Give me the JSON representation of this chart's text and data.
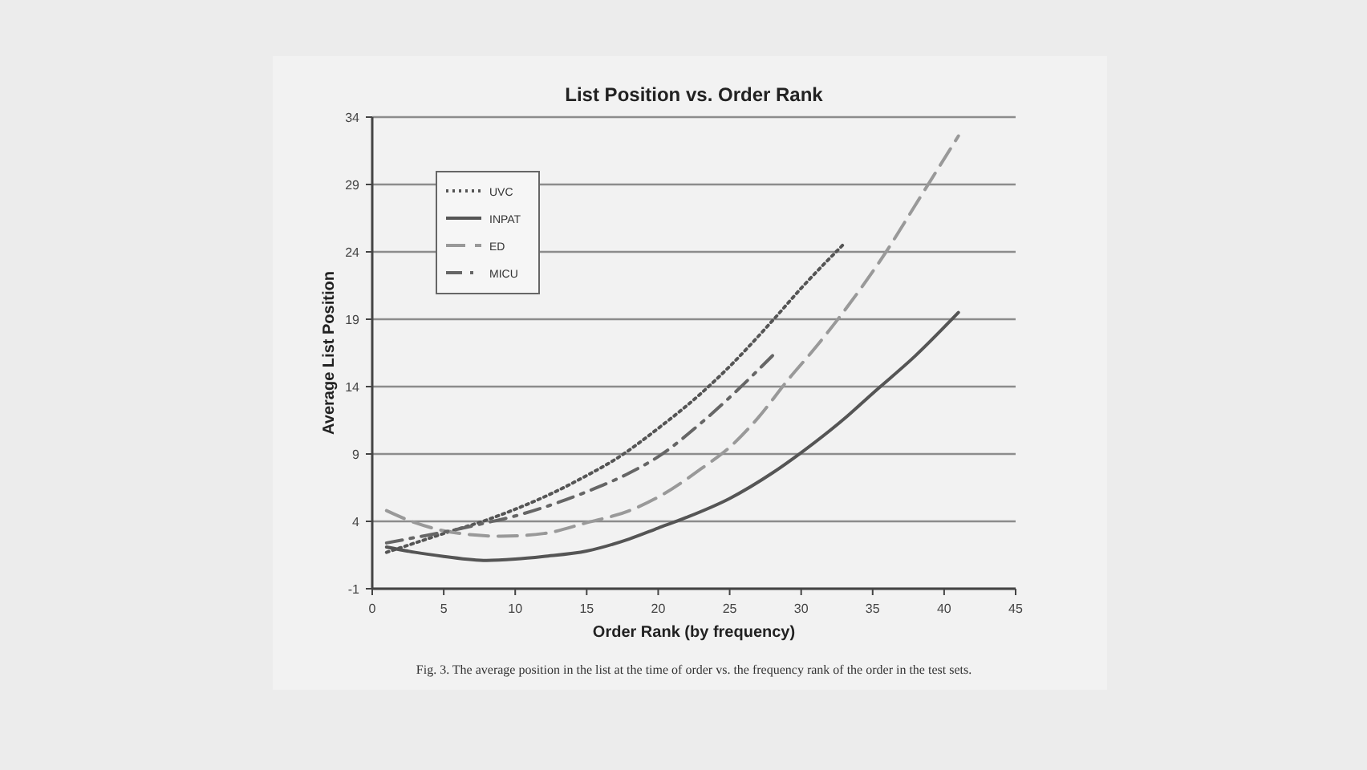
{
  "chart_data": {
    "type": "line",
    "title": "List Position vs. Order Rank",
    "xlabel": "Order Rank (by frequency)",
    "ylabel": "Average List Position",
    "annotations": [
      "Fig. 3. The average position in the list at the time of order vs. the frequency rank of the order in the test sets."
    ],
    "xlim": [
      0,
      45
    ],
    "xticks": [
      0,
      5,
      10,
      15,
      20,
      25,
      30,
      35,
      40,
      45
    ],
    "ylim": [
      -1,
      34
    ],
    "yticks": [
      -1,
      4,
      9,
      14,
      19,
      24,
      29,
      34
    ],
    "grid": "y",
    "legend": "top left",
    "marker": "none",
    "series": [
      {
        "name": "UVC",
        "color": "#555555",
        "line_style": "dotted",
        "x": [
          1,
          3,
          5,
          8,
          10,
          13,
          15,
          17,
          20,
          23,
          25,
          28,
          30,
          33
        ],
        "values": [
          1.7,
          2.4,
          3.1,
          4.1,
          4.9,
          6.3,
          7.4,
          8.6,
          10.9,
          13.5,
          15.5,
          18.9,
          21.3,
          24.6
        ]
      },
      {
        "name": "INPAT",
        "color": "#555555",
        "line_style": "solid",
        "x": [
          1,
          3,
          5,
          8,
          10,
          12,
          15,
          18,
          20,
          22,
          25,
          28,
          30,
          33,
          35,
          38,
          41
        ],
        "values": [
          2.1,
          1.7,
          1.4,
          1.1,
          1.2,
          1.4,
          1.8,
          2.7,
          3.5,
          4.3,
          5.7,
          7.6,
          9.1,
          11.6,
          13.5,
          16.3,
          19.5
        ]
      },
      {
        "name": "ED",
        "color": "#999999",
        "line_style": "dashed",
        "x": [
          1,
          3,
          5,
          7,
          9,
          12,
          15,
          18,
          20,
          23,
          25,
          27,
          29,
          31,
          33,
          36,
          38,
          41
        ],
        "values": [
          4.8,
          3.9,
          3.3,
          3.0,
          2.9,
          3.1,
          3.9,
          4.8,
          5.8,
          7.9,
          9.5,
          11.7,
          14.4,
          16.9,
          19.6,
          24.1,
          27.5,
          32.6
        ]
      },
      {
        "name": "MICU",
        "color": "#666666",
        "line_style": "dashdot",
        "x": [
          1,
          3,
          5,
          8,
          10,
          13,
          15,
          18,
          20,
          23,
          25,
          28
        ],
        "values": [
          2.4,
          2.8,
          3.2,
          3.9,
          4.4,
          5.4,
          6.2,
          7.6,
          8.8,
          11.3,
          13.2,
          16.3
        ]
      }
    ]
  }
}
